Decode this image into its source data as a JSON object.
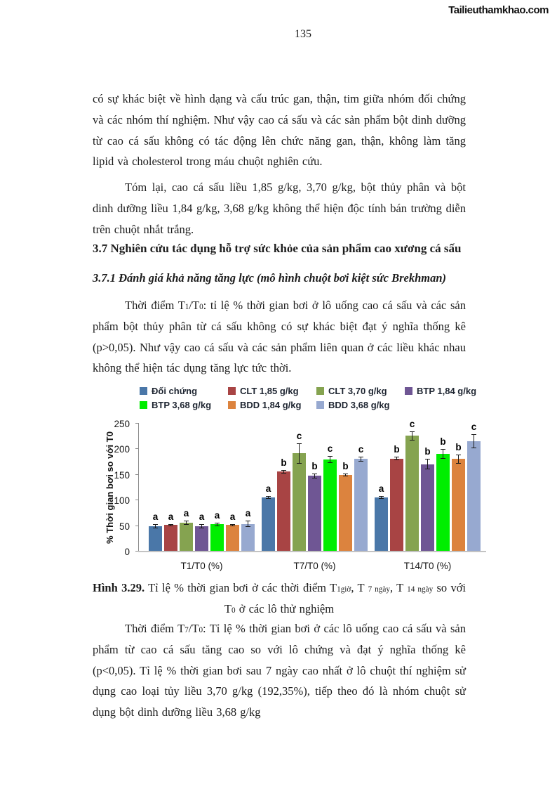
{
  "watermark": "Tailieuthamkhao.com",
  "page_number": "135",
  "paragraphs": {
    "p1": "có sự khác biệt về hình dạng và cấu trúc gan, thận, tim giữa nhóm đối chứng và các nhóm thí nghiệm. Như vậy cao cá sấu và các sản phẩm bột dinh dưỡng từ cao cá sấu không có tác động lên chức năng gan, thận, không làm tăng lipid và cholesterol trong máu chuột nghiên cứu.",
    "p2": "Tóm lại, cao cá sấu liều 1,85 g/kg, 3,70 g/kg, bột thủy phân và bột dinh dưỡng liều 1,84 g/kg, 3,68 g/kg không thể hiện độc tính bán trường diễn trên chuột nhắt trắng.",
    "heading_37": "3.7 Nghiên cứu tác dụng hỗ trợ sức khỏe của sản phẩm cao xương cá sấu",
    "heading_371": "3.7.1 Đánh giá khả năng tăng lực (mô hình chuột bơi kiệt sức Brekhman)",
    "p3": {
      "seg1": "Thời điểm T",
      "sub1": "1",
      "seg2": "/T",
      "sub2": "0",
      "seg3": ": tỉ lệ % thời gian bơi ở lô uống cao cá sấu và các sản phẩm bột thủy phân từ cá sấu không có sự khác biệt đạt ý nghĩa thống kê (p>0,05). Như vậy cao cá sấu và các sản phẩm liên quan ở các liều khác nhau không thể hiện tác dụng tăng lực tức thời."
    },
    "p5": {
      "seg1": "Thời điểm T",
      "sub1": "7",
      "seg2": "/T",
      "sub2": "0",
      "seg3": ": Tỉ lệ % thời gian bơi ở các lô uống cao cá sấu và sản phẩm từ cao cá sấu tăng cao so với lô chứng và đạt ý nghĩa thống kê (p<0,05). Tỉ lệ % thời gian bơi sau 7 ngày cao nhất ở lô chuột thí nghiệm sử dụng cao loại tủy liều 3,70 g/kg (192,35%), tiếp theo đó là nhóm chuột sử dụng bột dinh dưỡng liều 3,68 g/kg"
    }
  },
  "caption": {
    "label": "Hình 3.29.",
    "seg1": " Tỉ lệ % thời gian bơi ở các thời điểm T",
    "sub1": "1giờ",
    "seg2": ", T ",
    "sub2": "7 ngày",
    "seg3": ", T ",
    "sub3": "14 ngày",
    "seg4": " so với T",
    "sub4": "0",
    "seg5": " ở các",
    "line2": "lô thử nghiệm"
  },
  "chart_data": {
    "type": "bar",
    "title": "",
    "xlabel": "",
    "ylabel": "% Thời gian bơi so với T0",
    "ylim": [
      0,
      250
    ],
    "ytick_step": 50,
    "grid": false,
    "legend_position": "top",
    "error_bars": true,
    "categories": [
      "T1/T0 (%)",
      "T7/T0 (%)",
      "T14/T0 (%)"
    ],
    "series": [
      {
        "name": "Đối chứng",
        "color": "#4A77A8",
        "values": [
          50,
          106,
          106
        ],
        "errors": [
          4,
          3,
          3
        ],
        "letters": [
          "a",
          "a",
          "a"
        ]
      },
      {
        "name": "CLT 1,85 g/kg",
        "color": "#A84444",
        "values": [
          52,
          156,
          182
        ],
        "errors": [
          2,
          3,
          4
        ],
        "letters": [
          "a",
          "b",
          "b"
        ]
      },
      {
        "name": "CLT 3,70 g/kg",
        "color": "#85A350",
        "values": [
          56,
          192,
          226
        ],
        "errors": [
          4,
          20,
          9
        ],
        "letters": [
          "a",
          "c",
          "c"
        ]
      },
      {
        "name": "BTP 1,84 g/kg",
        "color": "#6F5694",
        "values": [
          50,
          148,
          171
        ],
        "errors": [
          4,
          5,
          10
        ],
        "letters": [
          "a",
          "b",
          "b"
        ]
      },
      {
        "name": "BTP 3,68 g/kg",
        "color": "#00EE00",
        "values": [
          53,
          180,
          191
        ],
        "errors": [
          3,
          7,
          10
        ],
        "letters": [
          "a",
          "c",
          "b"
        ]
      },
      {
        "name": "BDD 1,84 g/kg",
        "color": "#DC833E",
        "values": [
          52,
          150,
          181
        ],
        "errors": [
          2,
          3,
          9
        ],
        "letters": [
          "a",
          "b",
          "b"
        ]
      },
      {
        "name": "BDD 3,68 g/kg",
        "color": "#97A9D0",
        "values": [
          54,
          181,
          216
        ],
        "errors": [
          6,
          5,
          14
        ],
        "letters": [
          "a",
          "c",
          "c"
        ]
      }
    ]
  }
}
